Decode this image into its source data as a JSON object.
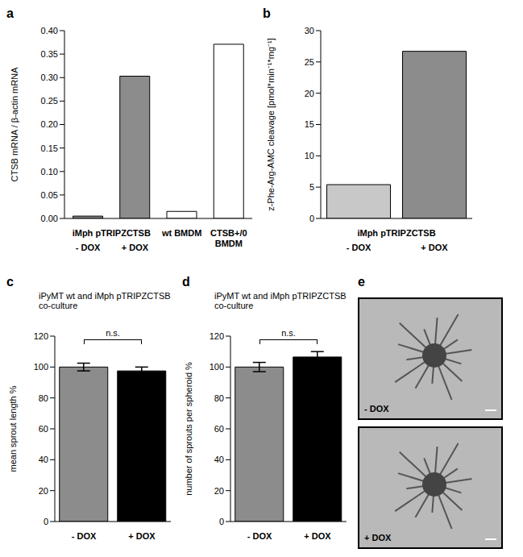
{
  "chart_data": [
    {
      "panel": "a",
      "type": "bar",
      "ylabel": "CTSB mRNA / β-actin mRNA",
      "categories": [
        "- DOX",
        "+ DOX",
        "wt BMDM",
        "CTSB+/0 BMDM"
      ],
      "category_groups": [
        "iMph pTRIPZCTSB",
        "iMph pTRIPZCTSB",
        null,
        null
      ],
      "values": [
        0.005,
        0.303,
        0.015,
        0.371
      ],
      "colors": [
        "#8c8c8c",
        "#8c8c8c",
        "#ffffff",
        "#ffffff"
      ],
      "ylim": [
        0,
        0.4
      ],
      "yticks": [
        {
          "value": 0,
          "label": "0.00"
        },
        {
          "value": 0.05,
          "label": "0.05"
        },
        {
          "value": 0.1,
          "label": "0.10"
        },
        {
          "value": 0.15,
          "label": "0.15"
        },
        {
          "value": 0.2,
          "label": "0.20"
        },
        {
          "value": 0.25,
          "label": "0.25"
        },
        {
          "value": 0.3,
          "label": "0.30"
        },
        {
          "value": 0.35,
          "label": "0.35"
        },
        {
          "value": 0.4,
          "label": "0.40"
        }
      ]
    },
    {
      "panel": "b",
      "type": "bar",
      "ylabel": "z-Phe-Arg-AMC cleavage [pmol*min⁻¹*mg⁻¹]",
      "categories": [
        "- DOX",
        "+ DOX"
      ],
      "category_groups": [
        "iMph pTRIPZCTSB",
        "iMph pTRIPZCTSB"
      ],
      "values": [
        5.4,
        26.7
      ],
      "colors": [
        "#c8c8c8",
        "#8c8c8c"
      ],
      "ylim": [
        0,
        30
      ],
      "yticks": [
        0,
        5,
        10,
        15,
        20,
        25,
        30
      ]
    },
    {
      "panel": "c",
      "type": "bar",
      "title": "iPyMT wt and iMph pTRIPZCTSB co-culture",
      "ylabel": "mean sprout length %",
      "categories": [
        "- DOX",
        "+ DOX"
      ],
      "values": [
        100,
        97.5
      ],
      "errors": [
        2.5,
        2.5
      ],
      "colors": [
        "#8c8c8c",
        "#000000"
      ],
      "ylim": [
        0,
        120
      ],
      "yticks": [
        0,
        20,
        40,
        60,
        80,
        100,
        120
      ],
      "annotation": "n.s."
    },
    {
      "panel": "d",
      "type": "bar",
      "title": "iPyMT wt and iMph pTRIPZCTSB co-culture",
      "ylabel": "number of sprouts per spheroid %",
      "categories": [
        "- DOX",
        "+ DOX"
      ],
      "values": [
        100,
        106.5
      ],
      "errors": [
        3,
        3.5
      ],
      "colors": [
        "#8c8c8c",
        "#000000"
      ],
      "ylim": [
        0,
        120
      ],
      "yticks": [
        0,
        20,
        40,
        60,
        80,
        100,
        120
      ],
      "annotation": "n.s."
    }
  ],
  "images": {
    "panel": "e",
    "captions": [
      "- DOX",
      "+ DOX"
    ]
  }
}
